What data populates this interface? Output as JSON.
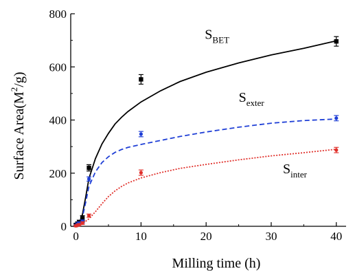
{
  "chart_data": {
    "type": "scatter",
    "title": "",
    "xlabel": "Milling time (h)",
    "ylabel": "Surface Area(M",
    "ylabel_sup": "2",
    "ylabel_tail": "/g)",
    "xlim": [
      -0.8,
      41.5
    ],
    "ylim": [
      0,
      800
    ],
    "xticks": [
      0,
      10,
      20,
      30,
      40
    ],
    "yticks": [
      0,
      200,
      400,
      600,
      800
    ],
    "grid": false,
    "legend": "none",
    "series": [
      {
        "label_main": "S",
        "label_sub": "BET",
        "color": "#000000",
        "marker": "square",
        "line_style": "solid",
        "points": [
          {
            "x": 0,
            "y": 5,
            "err": 6
          },
          {
            "x": 0.25,
            "y": 10,
            "err": 6
          },
          {
            "x": 0.5,
            "y": 15,
            "err": 8
          },
          {
            "x": 1,
            "y": 30,
            "err": 10
          },
          {
            "x": 2,
            "y": 220,
            "err": 12
          },
          {
            "x": 10,
            "y": 553,
            "err": 18
          },
          {
            "x": 40,
            "y": 696,
            "err": 18
          }
        ],
        "fit": [
          [
            0,
            0
          ],
          [
            0.5,
            12
          ],
          [
            1,
            45
          ],
          [
            1.5,
            110
          ],
          [
            2,
            180
          ],
          [
            3,
            255
          ],
          [
            4,
            310
          ],
          [
            5,
            350
          ],
          [
            6,
            385
          ],
          [
            7,
            410
          ],
          [
            8,
            432
          ],
          [
            10,
            468
          ],
          [
            13,
            510
          ],
          [
            16,
            545
          ],
          [
            20,
            580
          ],
          [
            25,
            615
          ],
          [
            30,
            645
          ],
          [
            35,
            670
          ],
          [
            40,
            698
          ]
        ]
      },
      {
        "label_main": "S",
        "label_sub": "exter",
        "color": "#1f3fd6",
        "marker": "circle",
        "line_style": "dashed",
        "points": [
          {
            "x": 0,
            "y": 3,
            "err": 4
          },
          {
            "x": 0.25,
            "y": 8,
            "err": 5
          },
          {
            "x": 0.5,
            "y": 12,
            "err": 5
          },
          {
            "x": 1,
            "y": 18,
            "err": 6
          },
          {
            "x": 2,
            "y": 178,
            "err": 8
          },
          {
            "x": 10,
            "y": 347,
            "err": 10
          },
          {
            "x": 40,
            "y": 407,
            "err": 10
          }
        ],
        "fit": [
          [
            0,
            0
          ],
          [
            0.5,
            10
          ],
          [
            1,
            35
          ],
          [
            1.5,
            90
          ],
          [
            2,
            150
          ],
          [
            3,
            205
          ],
          [
            4,
            240
          ],
          [
            5,
            262
          ],
          [
            6,
            278
          ],
          [
            7,
            289
          ],
          [
            8,
            297
          ],
          [
            10,
            308
          ],
          [
            13,
            323
          ],
          [
            16,
            338
          ],
          [
            20,
            355
          ],
          [
            25,
            373
          ],
          [
            30,
            388
          ],
          [
            35,
            398
          ],
          [
            40,
            404
          ]
        ]
      },
      {
        "label_main": "S",
        "label_sub": "inter",
        "color": "#e0302b",
        "marker": "circle",
        "line_style": "dotted",
        "points": [
          {
            "x": 0,
            "y": 2,
            "err": 3
          },
          {
            "x": 0.25,
            "y": 4,
            "err": 3
          },
          {
            "x": 0.5,
            "y": 6,
            "err": 4
          },
          {
            "x": 1,
            "y": 12,
            "err": 5
          },
          {
            "x": 2,
            "y": 40,
            "err": 6
          },
          {
            "x": 10,
            "y": 202,
            "err": 10
          },
          {
            "x": 40,
            "y": 287,
            "err": 10
          }
        ],
        "fit": [
          [
            0,
            0
          ],
          [
            0.5,
            4
          ],
          [
            1,
            10
          ],
          [
            2,
            28
          ],
          [
            3,
            55
          ],
          [
            4,
            85
          ],
          [
            5,
            112
          ],
          [
            6,
            133
          ],
          [
            7,
            150
          ],
          [
            8,
            163
          ],
          [
            10,
            182
          ],
          [
            13,
            202
          ],
          [
            16,
            218
          ],
          [
            20,
            233
          ],
          [
            25,
            250
          ],
          [
            30,
            265
          ],
          [
            35,
            277
          ],
          [
            40,
            290
          ]
        ]
      }
    ]
  }
}
